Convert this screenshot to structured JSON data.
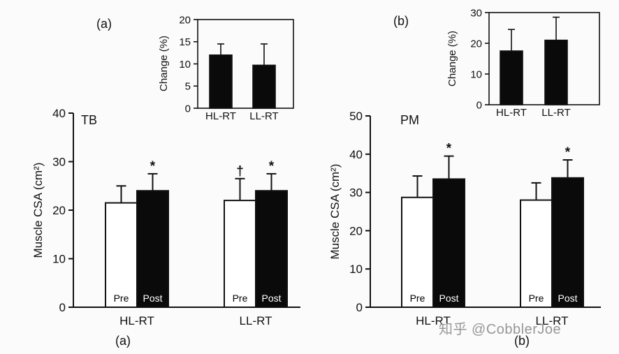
{
  "page": {
    "background": "#fbfbfb",
    "panel_a_label": "(a)",
    "panel_b_label": "(b)",
    "watermark": "知乎 @CobblerJoe",
    "watermark_color": "#979797"
  },
  "chart_data": [
    {
      "id": "tb_main",
      "type": "bar",
      "panel": "(a)",
      "title": "TB",
      "ylabel": "Muscle CSA (cm²)",
      "ylim": [
        0,
        40
      ],
      "yticks": [
        0,
        10,
        20,
        30,
        40
      ],
      "categories": [
        "HL-RT",
        "LL-RT"
      ],
      "series": [
        {
          "name": "Pre",
          "fill": "#ffffff",
          "label_color": "#000000",
          "values": [
            21.5,
            22.0
          ],
          "errors": [
            3.5,
            4.5
          ],
          "sig": [
            "",
            "†"
          ]
        },
        {
          "name": "Post",
          "fill": "#0a0a0a",
          "label_color": "#ffffff",
          "values": [
            24.0,
            24.0
          ],
          "errors": [
            3.5,
            3.5
          ],
          "sig": [
            "*",
            "*"
          ]
        }
      ],
      "show_bar_labels": true,
      "bottom_label": "(a)",
      "grid": false,
      "legend": "in-bar labels"
    },
    {
      "id": "tb_inset",
      "type": "bar",
      "panel": "(a) inset",
      "title": "",
      "ylabel": "Change (%)",
      "ylim": [
        0,
        20
      ],
      "yticks": [
        0,
        5,
        10,
        15,
        20
      ],
      "categories": [
        "HL-RT",
        "LL-RT"
      ],
      "series": [
        {
          "name": "Change",
          "fill": "#0a0a0a",
          "label_color": "#ffffff",
          "values": [
            12.0,
            9.7
          ],
          "errors": [
            2.5,
            4.8
          ],
          "sig": [
            "",
            ""
          ]
        }
      ],
      "show_bar_labels": false,
      "bottom_label": "",
      "grid": false,
      "legend": "none"
    },
    {
      "id": "pm_main",
      "type": "bar",
      "panel": "(b)",
      "title": "PM",
      "ylabel": "Muscle CSA (cm²)",
      "ylim": [
        0,
        50
      ],
      "yticks": [
        0,
        10,
        20,
        30,
        40,
        50
      ],
      "categories": [
        "HL-RT",
        "LL-RT"
      ],
      "series": [
        {
          "name": "Pre",
          "fill": "#ffffff",
          "label_color": "#000000",
          "values": [
            28.7,
            28.0
          ],
          "errors": [
            5.6,
            4.5
          ],
          "sig": [
            "",
            ""
          ]
        },
        {
          "name": "Post",
          "fill": "#0a0a0a",
          "label_color": "#ffffff",
          "values": [
            33.5,
            33.8
          ],
          "errors": [
            6.0,
            4.7
          ],
          "sig": [
            "*",
            "*"
          ]
        }
      ],
      "show_bar_labels": true,
      "bottom_label": "(b)",
      "grid": false,
      "legend": "in-bar labels"
    },
    {
      "id": "pm_inset",
      "type": "bar",
      "panel": "(b) inset",
      "title": "",
      "ylabel": "Change (%)",
      "ylim": [
        0,
        30
      ],
      "yticks": [
        0,
        10,
        20,
        30
      ],
      "categories": [
        "HL-RT",
        "LL-RT"
      ],
      "series": [
        {
          "name": "Change",
          "fill": "#0a0a0a",
          "label_color": "#ffffff",
          "values": [
            17.5,
            21.0
          ],
          "errors": [
            7.0,
            7.5
          ],
          "sig": [
            "",
            ""
          ]
        }
      ],
      "show_bar_labels": false,
      "bottom_label": "",
      "grid": false,
      "legend": "none"
    }
  ]
}
